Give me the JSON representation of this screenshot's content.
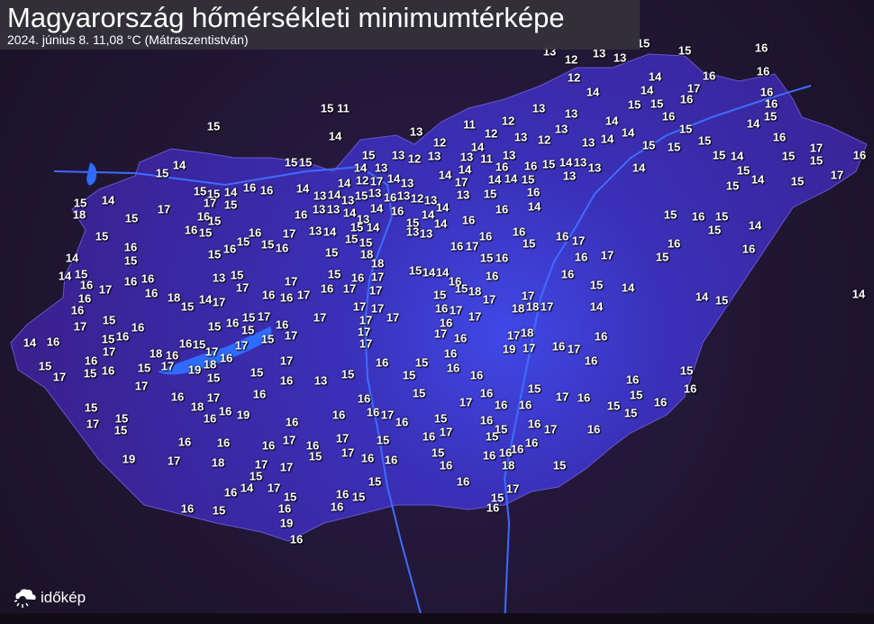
{
  "header": {
    "title": "Magyarország hőmérsékleti minimumtérképe",
    "subtitle": "2024. június 8.  11,08 °C (Mátraszentistván)"
  },
  "logo": {
    "text": "időkép",
    "icon": "cloud-sun-icon"
  },
  "colors": {
    "country_fill": "#3b2aa6",
    "center_fill": "#3f45e0",
    "surroundings": "#1e1530",
    "water": "#2f6bff",
    "labels": "#ffffff"
  },
  "stations": {
    "unit": "°C",
    "values": [
      13,
      13,
      15,
      15,
      16,
      12,
      13,
      16,
      12,
      14,
      16,
      17,
      14,
      14,
      16,
      15,
      15,
      16,
      16,
      16,
      15,
      14,
      15,
      11,
      15,
      13,
      13,
      11,
      12,
      14,
      14,
      13,
      14,
      12,
      12,
      14,
      13,
      12,
      13,
      13,
      14,
      16,
      15,
      15,
      15,
      15,
      15,
      17,
      15,
      14,
      16,
      15,
      17,
      15,
      14,
      15,
      15,
      13,
      12,
      13,
      13,
      11,
      13,
      16,
      15,
      14,
      13,
      13,
      13,
      14,
      15,
      15,
      14,
      15,
      15,
      13,
      14,
      13,
      14,
      12,
      17,
      14,
      14,
      16,
      15,
      14,
      14,
      13,
      17,
      14,
      13,
      14,
      13,
      13,
      13,
      14,
      15,
      13,
      16,
      13,
      12,
      13,
      15,
      16,
      14,
      16,
      14,
      13,
      14,
      15,
      16,
      14,
      14,
      16,
      15,
      15,
      14,
      16,
      16,
      14,
      15,
      14,
      18,
      17,
      16,
      15,
      17,
      15,
      15,
      16,
      15,
      16,
      15,
      14,
      15,
      15,
      16,
      15,
      16,
      16,
      15,
      16,
      17,
      13,
      14,
      15,
      15,
      14,
      15,
      13,
      13,
      15,
      18,
      18,
      16,
      17,
      16,
      16,
      15,
      16,
      17,
      16,
      16,
      15,
      17,
      16,
      16,
      15,
      14,
      15,
      15,
      15,
      14,
      16,
      16,
      17,
      16,
      16,
      16,
      18,
      14,
      13,
      15,
      17,
      17,
      16,
      16,
      17,
      15,
      16,
      17,
      15,
      14,
      14,
      16,
      15,
      16,
      16,
      16,
      15,
      14,
      15,
      17,
      16,
      17,
      17,
      15,
      15,
      18,
      17,
      17,
      18,
      18,
      17,
      14,
      14,
      15,
      14,
      16,
      17,
      15,
      16,
      16,
      15,
      14,
      16,
      16,
      17,
      18,
      16,
      16,
      15,
      17,
      15,
      16,
      15,
      17,
      16,
      17,
      17,
      17,
      17,
      17,
      16,
      17,
      16,
      17,
      15,
      17,
      16,
      18,
      19,
      17,
      15,
      15,
      17,
      17,
      17,
      17,
      16,
      17,
      18,
      19,
      17,
      16,
      17,
      16,
      16,
      15,
      17,
      15,
      16,
      17,
      15,
      15,
      17,
      16,
      13,
      15,
      16,
      15,
      15,
      16,
      16,
      16,
      15,
      16,
      16,
      15,
      16,
      15,
      15,
      17,
      16,
      15,
      16,
      16,
      16,
      17,
      15,
      16,
      17,
      16,
      15,
      17,
      15,
      15,
      16,
      16,
      19,
      18,
      16,
      16,
      16,
      16,
      17,
      16,
      15,
      17,
      16,
      15,
      16,
      17,
      16,
      16,
      16,
      16,
      17,
      16,
      17,
      17,
      15,
      16,
      15,
      15,
      16,
      16,
      16,
      16,
      16,
      18,
      16,
      19,
      17,
      18,
      17,
      15,
      14,
      17,
      15,
      15,
      16,
      15,
      16,
      16,
      17,
      15,
      16,
      16,
      15,
      16,
      15,
      17,
      16,
      15,
      19,
      16,
      16
    ]
  }
}
